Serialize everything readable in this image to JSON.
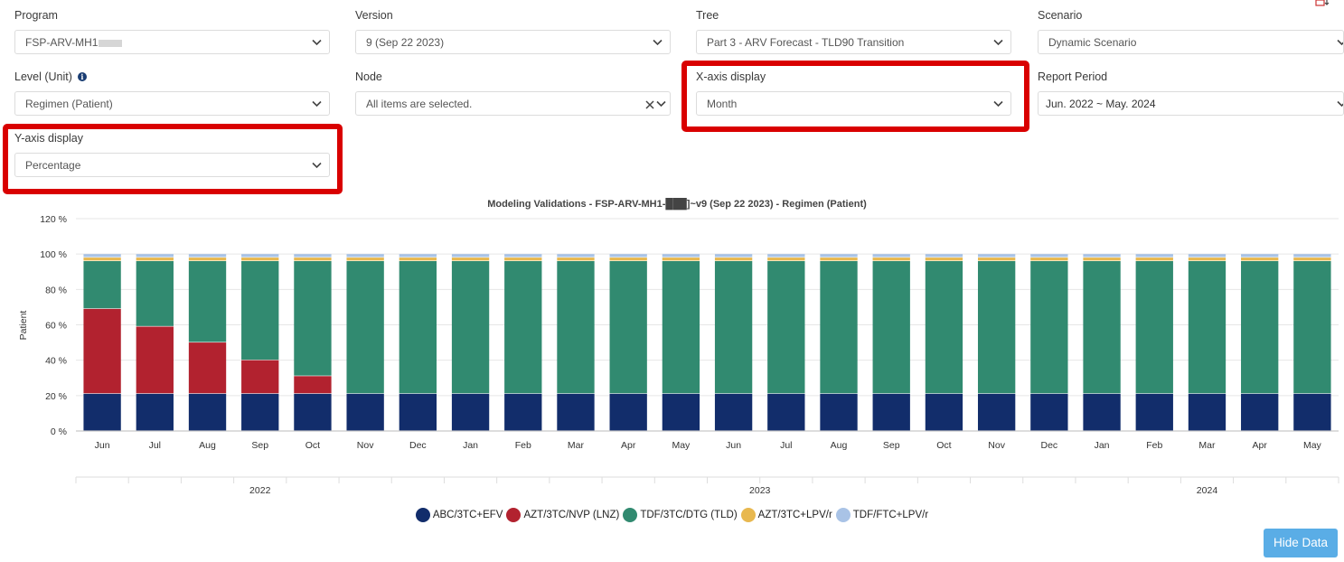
{
  "filters": {
    "program": {
      "label": "Program",
      "value": "FSP-ARV-MH1"
    },
    "version": {
      "label": "Version",
      "value": "9 (Sep 22 2023)"
    },
    "tree": {
      "label": "Tree",
      "value": "Part 3 - ARV Forecast - TLD90 Transition"
    },
    "scenario": {
      "label": "Scenario",
      "value": "Dynamic Scenario"
    },
    "level": {
      "label": "Level (Unit)",
      "value": "Regimen (Patient)"
    },
    "node": {
      "label": "Node",
      "value": "All items are selected."
    },
    "x_axis": {
      "label": "X-axis display",
      "value": "Month"
    },
    "report_period": {
      "label": "Report Period",
      "value": "Jun. 2022 ~ May. 2024"
    },
    "y_axis": {
      "label": "Y-axis display",
      "value": "Percentage"
    }
  },
  "colors": {
    "highlight": "#d90000",
    "button": "#5aade6"
  },
  "chart_data": {
    "type": "bar",
    "stacked": true,
    "title": "Modeling Validations - FSP-ARV-MH1-███]~v9 (Sep 22 2023) - Regimen (Patient)",
    "ylabel": "Patient",
    "xlabel": "",
    "ylim": [
      0,
      120
    ],
    "yticks": [
      "0 %",
      "20 %",
      "40 %",
      "60 %",
      "80 %",
      "100 %",
      "120 %"
    ],
    "categories": [
      "Jun",
      "Jul",
      "Aug",
      "Sep",
      "Oct",
      "Nov",
      "Dec",
      "Jan",
      "Feb",
      "Mar",
      "Apr",
      "May",
      "Jun",
      "Jul",
      "Aug",
      "Sep",
      "Oct",
      "Nov",
      "Dec",
      "Jan",
      "Feb",
      "Mar",
      "Apr",
      "May"
    ],
    "years": [
      "2022",
      "2023",
      "2024"
    ],
    "series": [
      {
        "name": "ABC/3TC+EFV",
        "color": "#122d6b",
        "values": [
          21,
          21,
          21,
          21,
          21,
          21,
          21,
          21,
          21,
          21,
          21,
          21,
          21,
          21,
          21,
          21,
          21,
          21,
          21,
          21,
          21,
          21,
          21,
          21
        ]
      },
      {
        "name": "AZT/3TC/NVP (LNZ)",
        "color": "#b2222f",
        "values": [
          48,
          38,
          29,
          19,
          10,
          0,
          0,
          0,
          0,
          0,
          0,
          0,
          0,
          0,
          0,
          0,
          0,
          0,
          0,
          0,
          0,
          0,
          0,
          0
        ]
      },
      {
        "name": "TDF/3TC/DTG (TLD)",
        "color": "#318a70",
        "values": [
          27,
          37,
          46,
          56,
          65,
          75,
          75,
          75,
          75,
          75,
          75,
          75,
          75,
          75,
          75,
          75,
          75,
          75,
          75,
          75,
          75,
          75,
          75,
          75
        ]
      },
      {
        "name": "AZT/3TC+LPV/r",
        "color": "#e8b84f",
        "values": [
          2,
          2,
          2,
          2,
          2,
          2,
          2,
          2,
          2,
          2,
          2,
          2,
          2,
          2,
          2,
          2,
          2,
          2,
          2,
          2,
          2,
          2,
          2,
          2
        ]
      },
      {
        "name": "TDF/FTC+LPV/r",
        "color": "#a9c3e6",
        "values": [
          2,
          2,
          2,
          2,
          2,
          2,
          2,
          2,
          2,
          2,
          2,
          2,
          2,
          2,
          2,
          2,
          2,
          2,
          2,
          2,
          2,
          2,
          2,
          2
        ]
      }
    ],
    "legend": "bottom"
  },
  "button": {
    "hide_data": "Hide Data"
  }
}
